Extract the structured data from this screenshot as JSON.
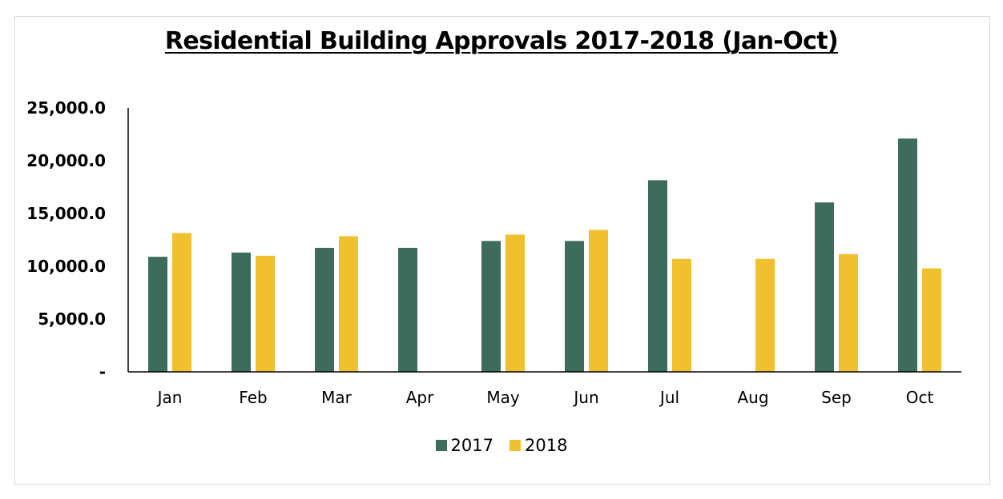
{
  "chart_data": {
    "type": "bar",
    "title": "Residential Building Approvals 2017-2018 (Jan-Oct)",
    "xlabel": "",
    "ylabel": "",
    "categories": [
      "Jan",
      "Feb",
      "Mar",
      "Apr",
      "May",
      "Jun",
      "Jul",
      "Aug",
      "Sep",
      "Oct"
    ],
    "series": [
      {
        "name": "2017",
        "color": "#3d6b5c",
        "values": [
          10900,
          11300,
          11750,
          11750,
          12400,
          12400,
          18150,
          null,
          16050,
          22100
        ]
      },
      {
        "name": "2018",
        "color": "#f0c02e",
        "values": [
          13150,
          11000,
          12850,
          null,
          13000,
          13450,
          10700,
          10700,
          11150,
          9800
        ]
      }
    ],
    "ylim": [
      0,
      25000
    ],
    "yticks": [
      {
        "value": 0,
        "label": "-"
      },
      {
        "value": 5000,
        "label": "5,000.0"
      },
      {
        "value": 10000,
        "label": "10,000.0"
      },
      {
        "value": 15000,
        "label": "15,000.0"
      },
      {
        "value": 20000,
        "label": "20,000.0"
      },
      {
        "value": 25000,
        "label": "25,000.0"
      }
    ],
    "grid": false,
    "legend_position": "bottom"
  }
}
